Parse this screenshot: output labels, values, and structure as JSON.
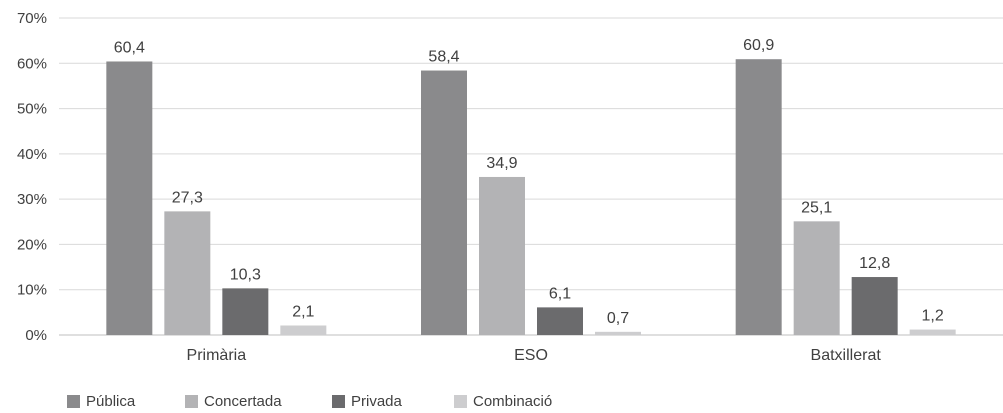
{
  "chart_data": {
    "type": "bar",
    "categories": [
      "Primària",
      "ESO",
      "Batxillerat"
    ],
    "series": [
      {
        "name": "Pública",
        "color": "#8a8a8c",
        "values": [
          60.4,
          58.4,
          60.9
        ],
        "labels": [
          "60,4",
          "58,4",
          "60,9"
        ]
      },
      {
        "name": "Concertada",
        "color": "#b3b3b5",
        "values": [
          27.3,
          34.9,
          25.1
        ],
        "labels": [
          "27,3",
          "34,9",
          "25,1"
        ]
      },
      {
        "name": "Privada",
        "color": "#6b6b6d",
        "values": [
          10.3,
          6.1,
          12.8
        ],
        "labels": [
          "10,3",
          "6,1",
          "12,8"
        ]
      },
      {
        "name": "Combinació",
        "color": "#cdcdcf",
        "values": [
          2.1,
          0.7,
          1.2
        ],
        "labels": [
          "2,1",
          "0,7",
          "1,2"
        ]
      }
    ],
    "yticks": [
      "0%",
      "10%",
      "20%",
      "30%",
      "40%",
      "50%",
      "60%",
      "70%"
    ],
    "ylim": [
      0,
      70
    ],
    "grid": true,
    "legend_position": "bottom-left"
  }
}
